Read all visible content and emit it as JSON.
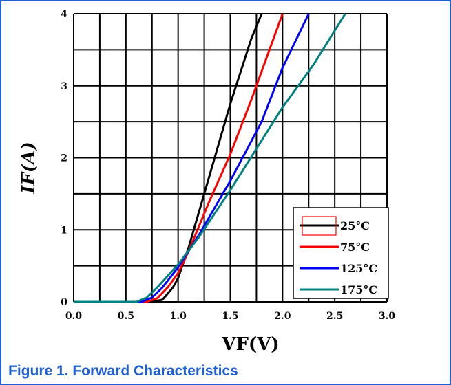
{
  "caption": "Figure 1. Forward Characteristics",
  "colors": {
    "frame": "#1f5fd6",
    "caption": "#1f5fd6"
  },
  "chart_data": {
    "type": "line",
    "title": "",
    "xlabel": "VF(V)",
    "ylabel": "IF(A)",
    "xlim": [
      0,
      3
    ],
    "ylim": [
      0,
      4
    ],
    "x_ticks": [
      "0.0",
      "0.5",
      "1.0",
      "1.5",
      "2.0",
      "2.5",
      "3.0"
    ],
    "y_ticks": [
      "0",
      "1",
      "2",
      "3",
      "4"
    ],
    "grid": true,
    "legend_position": "bottom-right",
    "series": [
      {
        "name": "25°C",
        "color": "#000000",
        "x": [
          0.0,
          0.75,
          0.85,
          0.95,
          1.0,
          1.1,
          1.3,
          1.5,
          1.7,
          1.8
        ],
        "y": [
          0.0,
          0.0,
          0.03,
          0.2,
          0.33,
          0.75,
          1.75,
          2.75,
          3.65,
          4.0
        ]
      },
      {
        "name": "75°C",
        "color": "#ff0000",
        "x": [
          0.0,
          0.7,
          0.8,
          0.9,
          1.0,
          1.1,
          1.3,
          1.5,
          1.7,
          2.0
        ],
        "y": [
          0.0,
          0.0,
          0.05,
          0.2,
          0.4,
          0.7,
          1.4,
          2.05,
          2.8,
          4.0
        ]
      },
      {
        "name": "125°C",
        "color": "#0000ff",
        "x": [
          0.0,
          0.65,
          0.75,
          0.85,
          1.0,
          1.2,
          1.5,
          1.8,
          2.0,
          2.25
        ],
        "y": [
          0.0,
          0.0,
          0.06,
          0.2,
          0.48,
          0.93,
          1.68,
          2.5,
          3.25,
          4.0
        ]
      },
      {
        "name": "175°C",
        "color": "#008080",
        "x": [
          0.0,
          0.6,
          0.7,
          0.8,
          1.0,
          1.2,
          1.5,
          2.0,
          2.3,
          2.6
        ],
        "y": [
          0.0,
          0.0,
          0.06,
          0.2,
          0.52,
          0.9,
          1.55,
          2.7,
          3.3,
          4.0
        ]
      }
    ]
  }
}
